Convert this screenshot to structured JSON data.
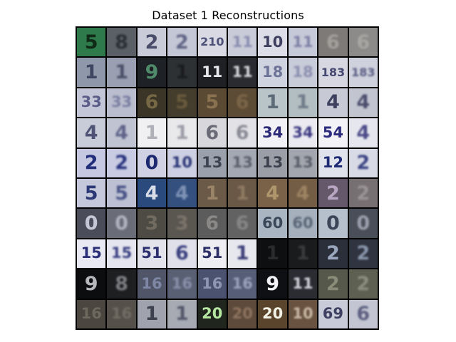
{
  "figure": {
    "title": "Dataset 1 Reconstructions"
  },
  "tiles": [
    {
      "bg": "#2f7a4a",
      "fg": "#102a18",
      "text": "5",
      "q": "sharp"
    },
    {
      "bg": "#5b6066",
      "fg": "#2c3035",
      "text": "8",
      "q": "blurry"
    },
    {
      "bg": "#c9ccd8",
      "fg": "#4a4d6a",
      "text": "2",
      "q": "sharp"
    },
    {
      "bg": "#c4c8d6",
      "fg": "#606585",
      "text": "2",
      "q": "blurry"
    },
    {
      "bg": "#d8d9e2",
      "fg": "#4f5278",
      "text": "210",
      "q": "sharp"
    },
    {
      "bg": "#c9cbd8",
      "fg": "#8a8db0",
      "text": "11",
      "q": "blurry"
    },
    {
      "bg": "#dcdde6",
      "fg": "#3f4060",
      "text": "10",
      "q": "sharp"
    },
    {
      "bg": "#c6c9d8",
      "fg": "#7d80a5",
      "text": "11",
      "q": "blurry"
    },
    {
      "bg": "#7d7a78",
      "fg": "#a3a09c",
      "text": "6",
      "q": "blurry"
    },
    {
      "bg": "#8c8b8a",
      "fg": "#a7a6a2",
      "text": "6",
      "q": "blurry"
    },
    {
      "bg": "#8f97ab",
      "fg": "#3d4560",
      "text": "1",
      "q": "sharp"
    },
    {
      "bg": "#9aa0b2",
      "fg": "#4a5068",
      "text": "1",
      "q": "blurry"
    },
    {
      "bg": "#1e2226",
      "fg": "#4f8a6a",
      "text": "9",
      "q": "sharp"
    },
    {
      "bg": "#2e3134",
      "fg": "#1a1c1e",
      "text": "1",
      "q": "blurry"
    },
    {
      "bg": "#1f2024",
      "fg": "#e8e8ec",
      "text": "11",
      "q": "sharp"
    },
    {
      "bg": "#2a2b30",
      "fg": "#d6d6dc",
      "text": "11",
      "q": "blurry"
    },
    {
      "bg": "#cfd2df",
      "fg": "#6e7398",
      "text": "18",
      "q": "sharp"
    },
    {
      "bg": "#c8cbd8",
      "fg": "#8a8fb0",
      "text": "18",
      "q": "blurry"
    },
    {
      "bg": "#d6d7e0",
      "fg": "#454870",
      "text": "183",
      "q": "sharp"
    },
    {
      "bg": "#cfd1dc",
      "fg": "#585b82",
      "text": "183",
      "q": "blurry"
    },
    {
      "bg": "#c3c6d6",
      "fg": "#5a5e88",
      "text": "33",
      "q": "sharp"
    },
    {
      "bg": "#b9bdcd",
      "fg": "#7a7ea2",
      "text": "33",
      "q": "blurry"
    },
    {
      "bg": "#3b3527",
      "fg": "#776845",
      "text": "6",
      "q": "sharp"
    },
    {
      "bg": "#443c2c",
      "fg": "#6a5b3d",
      "text": "5",
      "q": "blurry"
    },
    {
      "bg": "#5a4a33",
      "fg": "#8a7150",
      "text": "5",
      "q": "sharp"
    },
    {
      "bg": "#5d4c35",
      "fg": "#7c6548",
      "text": "6",
      "q": "blurry"
    },
    {
      "bg": "#b9c4c8",
      "fg": "#5d6a78",
      "text": "1",
      "q": "sharp"
    },
    {
      "bg": "#b3bec2",
      "fg": "#6e7b88",
      "text": "1",
      "q": "blurry"
    },
    {
      "bg": "#c7cad5",
      "fg": "#3d405e",
      "text": "4",
      "q": "sharp"
    },
    {
      "bg": "#c2c5d0",
      "fg": "#4a4d6c",
      "text": "4",
      "q": "blurry"
    },
    {
      "bg": "#c8ccd8",
      "fg": "#4f5476",
      "text": "4",
      "q": "sharp"
    },
    {
      "bg": "#c0c4d2",
      "fg": "#60648a",
      "text": "4",
      "q": "blurry"
    },
    {
      "bg": "#f0f0f2",
      "fg": "#b0b0b8",
      "text": "1",
      "q": "sharp"
    },
    {
      "bg": "#e9e9ec",
      "fg": "#9c9ca8",
      "text": "1",
      "q": "blurry"
    },
    {
      "bg": "#d8d8dc",
      "fg": "#6b6b78",
      "text": "6",
      "q": "sharp"
    },
    {
      "bg": "#e2e2e6",
      "fg": "#8a8a96",
      "text": "6",
      "q": "blurry"
    },
    {
      "bg": "#f2f2f6",
      "fg": "#2d2a78",
      "text": "34",
      "q": "sharp"
    },
    {
      "bg": "#eaeaf0",
      "fg": "#3a3780",
      "text": "34",
      "q": "blurry"
    },
    {
      "bg": "#f2f2f7",
      "fg": "#2c2a7c",
      "text": "54",
      "q": "sharp"
    },
    {
      "bg": "#e6e7ee",
      "fg": "#4b4a88",
      "text": "4",
      "q": "blurry"
    },
    {
      "bg": "#c5c8e0",
      "fg": "#232e7a",
      "text": "2",
      "q": "sharp"
    },
    {
      "bg": "#c8cbe2",
      "fg": "#2a3480",
      "text": "2",
      "q": "blurry"
    },
    {
      "bg": "#d0d2e4",
      "fg": "#1e2a70",
      "text": "0",
      "q": "sharp"
    },
    {
      "bg": "#cdd0e2",
      "fg": "#2a3576",
      "text": "10",
      "q": "blurry"
    },
    {
      "bg": "#9aa0ac",
      "fg": "#3f4452",
      "text": "13",
      "q": "sharp"
    },
    {
      "bg": "#a3a8b3",
      "fg": "#5a5f6c",
      "text": "13",
      "q": "blurry"
    },
    {
      "bg": "#9b9ea6",
      "fg": "#3e414e",
      "text": "13",
      "q": "sharp"
    },
    {
      "bg": "#a3a6ae",
      "fg": "#5a5e6a",
      "text": "13",
      "q": "blurry"
    },
    {
      "bg": "#e0e2ec",
      "fg": "#1f2a74",
      "text": "12",
      "q": "sharp"
    },
    {
      "bg": "#d8dbe6",
      "fg": "#3c4585",
      "text": "2",
      "q": "blurry"
    },
    {
      "bg": "#c4c8da",
      "fg": "#2c3876",
      "text": "5",
      "q": "sharp"
    },
    {
      "bg": "#bcc0d2",
      "fg": "#4a5488",
      "text": "5",
      "q": "blurry"
    },
    {
      "bg": "#2a4a7e",
      "fg": "#d8dde8",
      "text": "4",
      "q": "sharp"
    },
    {
      "bg": "#34507e",
      "fg": "#7f93b6",
      "text": "4",
      "q": "blurry"
    },
    {
      "bg": "#6c5a48",
      "fg": "#9a8468",
      "text": "1",
      "q": "sharp"
    },
    {
      "bg": "#6a5947",
      "fg": "#8f7a61",
      "text": "1",
      "q": "blurry"
    },
    {
      "bg": "#7a6248",
      "fg": "#b0966c",
      "text": "4",
      "q": "sharp"
    },
    {
      "bg": "#735d45",
      "fg": "#9c8362",
      "text": "4",
      "q": "blurry"
    },
    {
      "bg": "#65586a",
      "fg": "#b6a4c0",
      "text": "2",
      "q": "sharp"
    },
    {
      "bg": "#777072",
      "fg": "#9a9496",
      "text": "2",
      "q": "blurry"
    },
    {
      "bg": "#4a4c5a",
      "fg": "#c4c6d6",
      "text": "0",
      "q": "sharp"
    },
    {
      "bg": "#6a6c78",
      "fg": "#b0b2c0",
      "text": "0",
      "q": "blurry"
    },
    {
      "bg": "#4e4b45",
      "fg": "#706a60",
      "text": "3",
      "q": "sharp"
    },
    {
      "bg": "#5a5650",
      "fg": "#7a746a",
      "text": "3",
      "q": "blurry"
    },
    {
      "bg": "#5d5c5c",
      "fg": "#8a8886",
      "text": "6",
      "q": "sharp"
    },
    {
      "bg": "#626262",
      "fg": "#858585",
      "text": "6",
      "q": "blurry"
    },
    {
      "bg": "#aab5c2",
      "fg": "#3b4858",
      "text": "60",
      "q": "sharp"
    },
    {
      "bg": "#a6b0bd",
      "fg": "#5a6676",
      "text": "60",
      "q": "blurry"
    },
    {
      "bg": "#b6bfcc",
      "fg": "#3a4658",
      "text": "0",
      "q": "sharp"
    },
    {
      "bg": "#4a4e58",
      "fg": "#9aa0ae",
      "text": "0",
      "q": "blurry"
    },
    {
      "bg": "#e8e9f2",
      "fg": "#2a2f78",
      "text": "15",
      "q": "sharp"
    },
    {
      "bg": "#e4e5ee",
      "fg": "#3a3f82",
      "text": "15",
      "q": "blurry"
    },
    {
      "bg": "#e2e3eb",
      "fg": "#2b2f70",
      "text": "51",
      "q": "sharp"
    },
    {
      "bg": "#dfe0e9",
      "fg": "#3b4080",
      "text": "6",
      "q": "blurry"
    },
    {
      "bg": "#eeeef2",
      "fg": "#2c2e68",
      "text": "51",
      "q": "sharp"
    },
    {
      "bg": "#e7e8ee",
      "fg": "#3c3e78",
      "text": "1",
      "q": "blurry"
    },
    {
      "bg": "#0e0f10",
      "fg": "#2a2b2c",
      "text": "1",
      "q": "sharp"
    },
    {
      "bg": "#1a1b1c",
      "fg": "#3a3b3c",
      "text": "1",
      "q": "blurry"
    },
    {
      "bg": "#2a2f3a",
      "fg": "#9aa6bc",
      "text": "2",
      "q": "sharp"
    },
    {
      "bg": "#303440",
      "fg": "#8a96ac",
      "text": "2",
      "q": "blurry"
    },
    {
      "bg": "#0c0d0e",
      "fg": "#b6b8bc",
      "text": "9",
      "q": "sharp"
    },
    {
      "bg": "#1e1f21",
      "fg": "#7c7e82",
      "text": "8",
      "q": "blurry"
    },
    {
      "bg": "#505668",
      "fg": "#7e88a6",
      "text": "16",
      "q": "sharp"
    },
    {
      "bg": "#5a6074",
      "fg": "#8890aa",
      "text": "16",
      "q": "blurry"
    },
    {
      "bg": "#4a5270",
      "fg": "#8e96b4",
      "text": "16",
      "q": "sharp"
    },
    {
      "bg": "#565e78",
      "fg": "#9aa2bc",
      "text": "16",
      "q": "blurry"
    },
    {
      "bg": "#0f1014",
      "fg": "#f2f2f6",
      "text": "9",
      "q": "sharp"
    },
    {
      "bg": "#2a2c32",
      "fg": "#d2d4da",
      "text": "11",
      "q": "blurry"
    },
    {
      "bg": "#55584a",
      "fg": "#8a8c78",
      "text": "2",
      "q": "sharp"
    },
    {
      "bg": "#5e6052",
      "fg": "#8c8e7e",
      "text": "2",
      "q": "blurry"
    },
    {
      "bg": "#4b4740",
      "fg": "#6d685e",
      "text": "16",
      "q": "sharp"
    },
    {
      "bg": "#55514a",
      "fg": "#726d64",
      "text": "16",
      "q": "blurry"
    },
    {
      "bg": "#a0a3ad",
      "fg": "#3e4150",
      "text": "1",
      "q": "sharp"
    },
    {
      "bg": "#a7aab3",
      "fg": "#54576a",
      "text": "1",
      "q": "blurry"
    },
    {
      "bg": "#20251e",
      "fg": "#b6e8a2",
      "text": "20",
      "q": "sharp"
    },
    {
      "bg": "#5e4a3a",
      "fg": "#8e7460",
      "text": "20",
      "q": "blurry"
    },
    {
      "bg": "#5b442c",
      "fg": "#f2f2e6",
      "text": "20",
      "q": "sharp"
    },
    {
      "bg": "#6a5240",
      "fg": "#c9b9a6",
      "text": "10",
      "q": "blurry"
    },
    {
      "bg": "#c9ccd8",
      "fg": "#3d4060",
      "text": "69",
      "q": "sharp"
    },
    {
      "bg": "#c3c6d2",
      "fg": "#5d6080",
      "text": "6",
      "q": "blurry"
    }
  ]
}
